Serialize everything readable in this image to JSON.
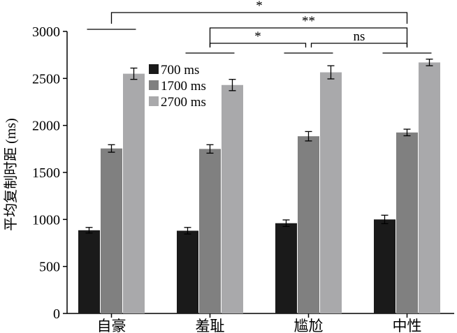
{
  "chart_data": {
    "type": "bar",
    "title": "",
    "xlabel": "",
    "ylabel": "平均复制时距 (ms)",
    "ylim": [
      0,
      3000
    ],
    "yticks": [
      "0",
      "500",
      "1000",
      "1500",
      "2000",
      "2500",
      "3000"
    ],
    "categories": [
      "自豪",
      "羞耻",
      "尴尬",
      "中性"
    ],
    "series": [
      {
        "name": "700 ms",
        "color": "#1a1a1a",
        "values": [
          885,
          880,
          960,
          1000
        ],
        "errors": [
          30,
          35,
          35,
          45
        ]
      },
      {
        "name": "1700 ms",
        "color": "#808080",
        "values": [
          1755,
          1750,
          1885,
          1925
        ],
        "errors": [
          40,
          45,
          50,
          35
        ]
      },
      {
        "name": "2700 ms",
        "color": "#a9a9ab",
        "values": [
          2550,
          2430,
          2565,
          2670
        ],
        "errors": [
          60,
          60,
          70,
          35
        ]
      }
    ],
    "legend_position": "top-left",
    "significance": [
      {
        "from": "自豪",
        "to": "中性",
        "label": "*"
      },
      {
        "from": "羞耻",
        "to": "中性",
        "label": "**"
      },
      {
        "from": "羞耻",
        "to": "尴尬",
        "label": "*"
      },
      {
        "from": "尴尬",
        "to": "中性",
        "label": "ns"
      }
    ]
  }
}
